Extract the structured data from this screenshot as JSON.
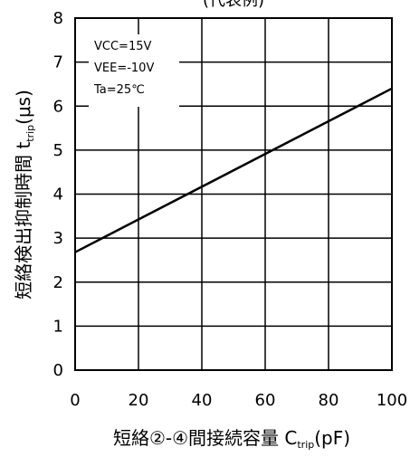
{
  "chart_data": {
    "type": "line",
    "title": "(代表例)",
    "xlabel": {
      "main": "短絡②-④間接続容量 C",
      "sub": "trip",
      "unit": "(pF)"
    },
    "ylabel": {
      "main": "短絡検出抑制時間 t",
      "sub": "trip",
      "unit": "(μs)"
    },
    "xlim": [
      0,
      100
    ],
    "ylim": [
      0,
      8
    ],
    "xticks": [
      "0",
      "20",
      "40",
      "60",
      "80",
      "100"
    ],
    "yticks": [
      "0",
      "1",
      "2",
      "3",
      "4",
      "5",
      "6",
      "7",
      "8"
    ],
    "grid": true,
    "conditions": [
      "VCC=15V",
      "VEE=-10V",
      "Ta=25℃"
    ],
    "series": [
      {
        "x": [
          0,
          100
        ],
        "y": [
          2.68,
          6.4
        ]
      }
    ]
  }
}
